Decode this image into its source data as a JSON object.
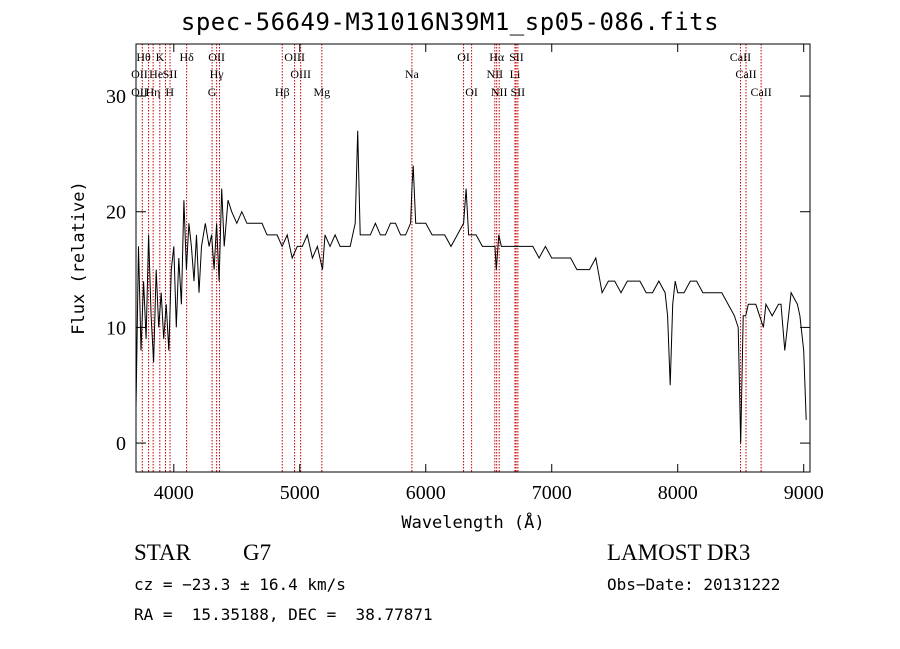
{
  "chart_data": {
    "type": "line",
    "title": "spec-56649-M31016N39M1_sp05-086.fits",
    "xlabel": "Wavelength (Å)",
    "ylabel": "Flux (relative)",
    "xlim": [
      3700,
      9050
    ],
    "ylim": [
      -2.5,
      34.5
    ],
    "xticks": [
      4000,
      5000,
      6000,
      7000,
      8000,
      9000
    ],
    "yticks": [
      0,
      10,
      20,
      30
    ],
    "grid": false,
    "line_color": "#000000",
    "marker_color": "#cc0000",
    "series": [
      {
        "x": [
          3700,
          3720,
          3740,
          3760,
          3780,
          3800,
          3820,
          3840,
          3860,
          3880,
          3900,
          3920,
          3940,
          3960,
          3980,
          4000,
          4020,
          4040,
          4060,
          4080,
          4100,
          4120,
          4140,
          4160,
          4180,
          4200,
          4220,
          4250,
          4280,
          4300,
          4320,
          4340,
          4360,
          4380,
          4400,
          4430,
          4460,
          4500,
          4540,
          4580,
          4620,
          4660,
          4700,
          4740,
          4780,
          4820,
          4860,
          4900,
          4940,
          4980,
          5020,
          5060,
          5100,
          5140,
          5180,
          5200,
          5240,
          5280,
          5320,
          5360,
          5400,
          5440,
          5460,
          5480,
          5520,
          5560,
          5600,
          5640,
          5680,
          5720,
          5760,
          5800,
          5840,
          5880,
          5890,
          5900,
          5920,
          5960,
          6000,
          6050,
          6100,
          6150,
          6200,
          6250,
          6300,
          6320,
          6340,
          6400,
          6450,
          6500,
          6550,
          6560,
          6580,
          6600,
          6650,
          6700,
          6750,
          6800,
          6850,
          6900,
          6950,
          7000,
          7050,
          7100,
          7150,
          7200,
          7250,
          7300,
          7350,
          7400,
          7450,
          7500,
          7550,
          7600,
          7650,
          7700,
          7750,
          7800,
          7850,
          7900,
          7920,
          7940,
          7960,
          7980,
          8000,
          8050,
          8100,
          8150,
          8200,
          8250,
          8300,
          8350,
          8400,
          8450,
          8480,
          8500,
          8520,
          8540,
          8560,
          8580,
          8600,
          8620,
          8650,
          8680,
          8700,
          8750,
          8800,
          8820,
          8850,
          8900,
          8950,
          8970,
          9000,
          9020
        ],
        "y": [
          3,
          17,
          8,
          14,
          9,
          18,
          11,
          7,
          15,
          10,
          13,
          9,
          12,
          8,
          15,
          17,
          10,
          16,
          12,
          21,
          15,
          19,
          17,
          14,
          18,
          13,
          17,
          19,
          17,
          18,
          15,
          19,
          14,
          22,
          17,
          21,
          20,
          19,
          20,
          19,
          19,
          19,
          19,
          18,
          18,
          18,
          17,
          18,
          16,
          17,
          17,
          18,
          16,
          17,
          15,
          18,
          17,
          18,
          17,
          17,
          17,
          19,
          27,
          18,
          18,
          18,
          19,
          18,
          18,
          19,
          19,
          18,
          18,
          19,
          22,
          24,
          19,
          19,
          19,
          18,
          18,
          18,
          17,
          18,
          19,
          22,
          18,
          18,
          17,
          17,
          17,
          15,
          18,
          17,
          17,
          17,
          17,
          17,
          17,
          16,
          17,
          16,
          16,
          16,
          16,
          15,
          15,
          15,
          16,
          13,
          14,
          14,
          13,
          14,
          14,
          14,
          13,
          13,
          14,
          13,
          11,
          5,
          12,
          14,
          13,
          13,
          14,
          14,
          13,
          13,
          13,
          13,
          12,
          11,
          10,
          0,
          11,
          11,
          12,
          12,
          12,
          12,
          11,
          10,
          12,
          11,
          12,
          12,
          8,
          13,
          12,
          11,
          8,
          2
        ]
      }
    ],
    "lines_top": [
      {
        "w": 3760,
        "label": "Hθ"
      },
      {
        "w": 3890,
        "label": "K"
      },
      {
        "w": 4102,
        "label": "Hδ"
      },
      {
        "w": 4340,
        "label": "OII"
      },
      {
        "w": 4959,
        "label": "OIII"
      },
      {
        "w": 6300,
        "label": "OI"
      },
      {
        "w": 6563,
        "label": "Hα"
      },
      {
        "w": 6720,
        "label": "SII"
      },
      {
        "w": 8498,
        "label": "CaII"
      }
    ],
    "lines_mid": [
      {
        "w": 3727,
        "label": "OII"
      },
      {
        "w": 3860,
        "label": "He"
      },
      {
        "w": 3970,
        "label": "SII"
      },
      {
        "w": 4340,
        "label": "Hγ"
      },
      {
        "w": 5007,
        "label": "OIII"
      },
      {
        "w": 5890,
        "label": "Na"
      },
      {
        "w": 6548,
        "label": "NII"
      },
      {
        "w": 6708,
        "label": "Li"
      },
      {
        "w": 8542,
        "label": "CaII"
      }
    ],
    "lines_low": [
      {
        "w": 3727,
        "label": "OII"
      },
      {
        "w": 3835,
        "label": "Hη"
      },
      {
        "w": 3968,
        "label": "H"
      },
      {
        "w": 4304,
        "label": "G"
      },
      {
        "w": 4861,
        "label": "Hβ"
      },
      {
        "w": 5175,
        "label": "Mg"
      },
      {
        "w": 6364,
        "label": "OI"
      },
      {
        "w": 6583,
        "label": "NII"
      },
      {
        "w": 6731,
        "label": "SII"
      },
      {
        "w": 8662,
        "label": "CaII"
      }
    ],
    "vlines": [
      3750,
      3800,
      3836,
      3889,
      3934,
      3970,
      4102,
      4304,
      4340,
      4363,
      4861,
      4959,
      5007,
      5175,
      5890,
      6300,
      6364,
      6548,
      6563,
      6583,
      6708,
      6717,
      6731,
      8498,
      8542,
      8662
    ]
  },
  "info": {
    "class": "STAR",
    "subclass": "G7",
    "survey": "LAMOST DR3",
    "cz": "cz = −23.3 ± 16.4 km/s",
    "obsdate": "Obs−Date: 20131222",
    "radec": "RA =  15.35188, DEC =  38.77871"
  }
}
